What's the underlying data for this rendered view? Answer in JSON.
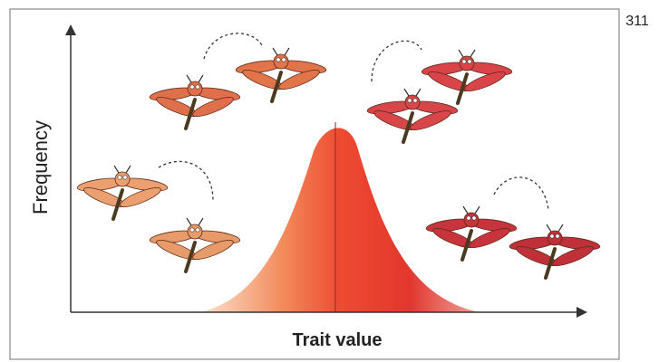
{
  "page_number": "311",
  "figure": {
    "y_axis_label": "Frequency",
    "x_axis_label": "Trait value"
  }
}
